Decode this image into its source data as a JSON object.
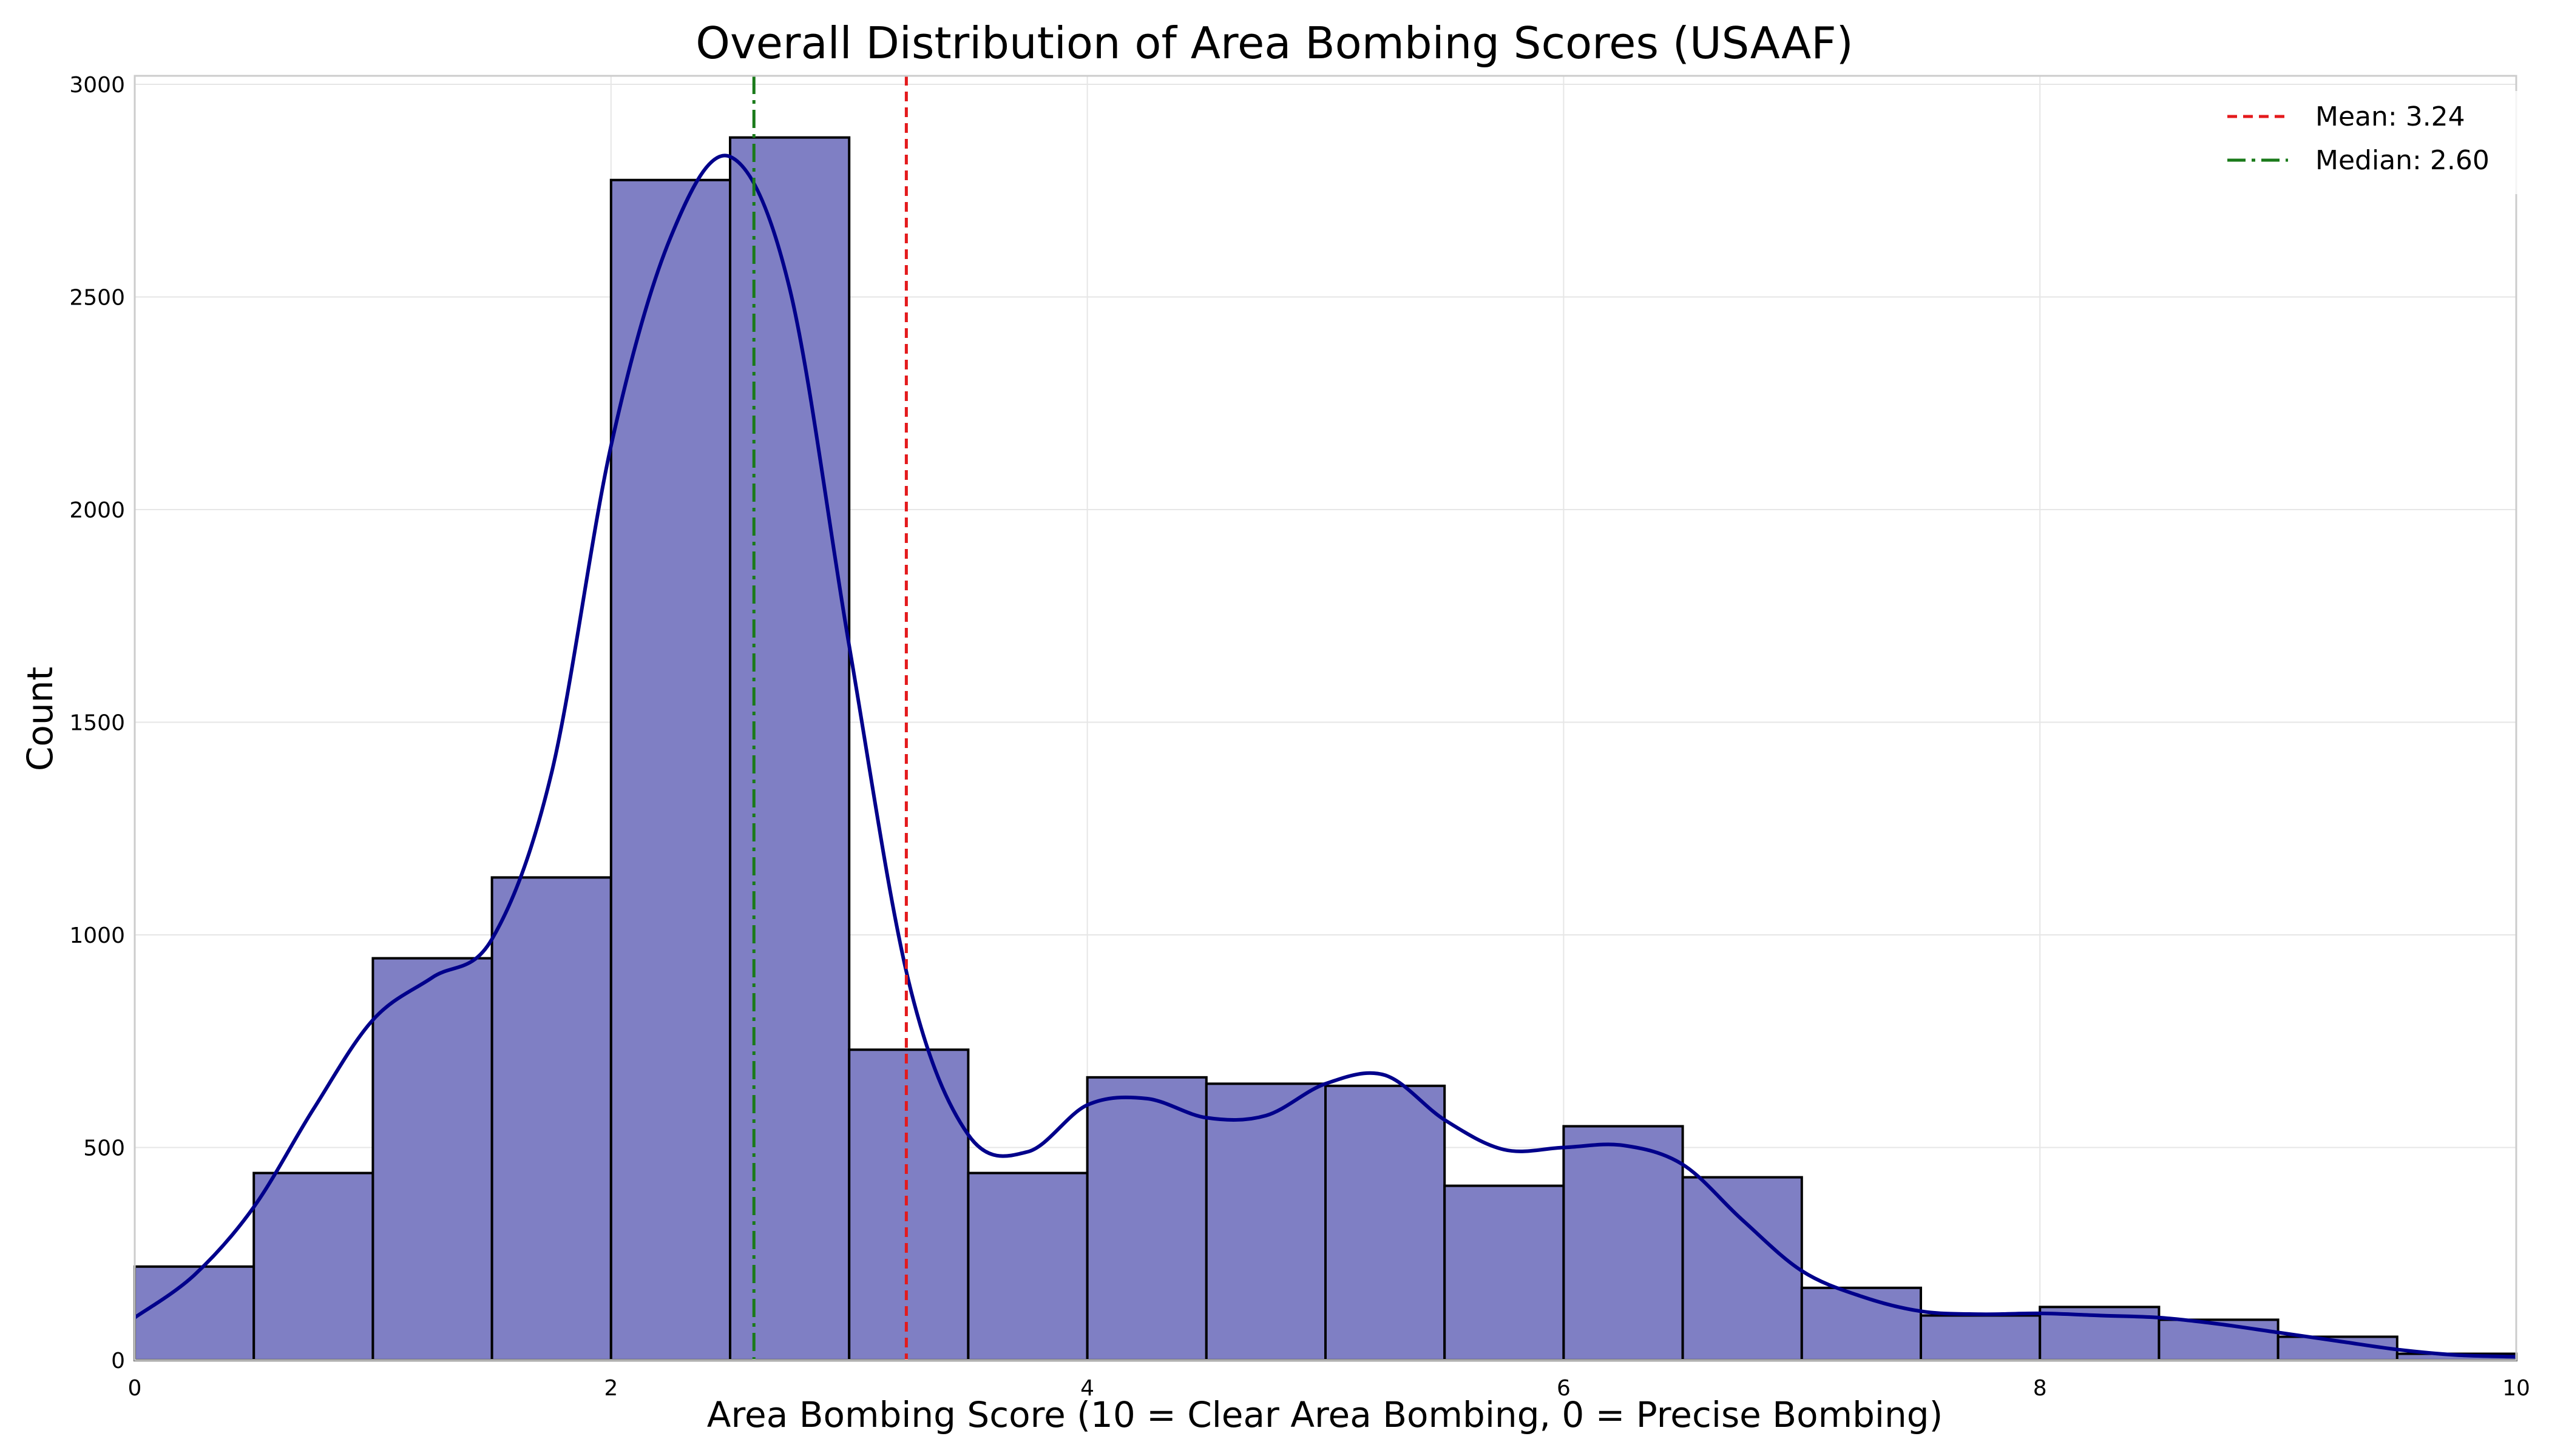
{
  "chart_data": {
    "type": "bar",
    "title": "Overall Distribution of Area Bombing Scores (USAAF)",
    "xlabel": "Area Bombing Score (10 = Clear Area Bombing, 0 = Precise Bombing)",
    "ylabel": "Count",
    "xlim": [
      0,
      10
    ],
    "ylim": [
      0,
      3020
    ],
    "xticks": [
      0,
      2,
      4,
      6,
      8,
      10
    ],
    "yticks": [
      0,
      500,
      1000,
      1500,
      2000,
      2500,
      3000
    ],
    "grid": true,
    "legend_position": "top-right",
    "bin_edges": [
      0,
      0.5,
      1,
      1.5,
      2,
      2.5,
      3,
      3.5,
      4,
      4.5,
      5,
      5.5,
      6,
      6.5,
      7,
      7.5,
      8,
      8.5,
      9,
      9.5,
      10
    ],
    "counts": [
      220,
      440,
      945,
      1135,
      2775,
      2875,
      730,
      440,
      665,
      650,
      645,
      410,
      550,
      430,
      170,
      105,
      125,
      95,
      55,
      15
    ],
    "kde": {
      "x": [
        0,
        0.25,
        0.5,
        0.75,
        1.0,
        1.25,
        1.5,
        1.75,
        2.0,
        2.25,
        2.5,
        2.75,
        3.0,
        3.25,
        3.5,
        3.75,
        4.0,
        4.25,
        4.5,
        4.75,
        5.0,
        5.25,
        5.5,
        5.75,
        6.0,
        6.25,
        6.5,
        6.75,
        7.0,
        7.25,
        7.5,
        7.75,
        8.0,
        8.25,
        8.5,
        8.75,
        9.0,
        9.25,
        9.5,
        9.75,
        10.0
      ],
      "y": [
        100,
        200,
        360,
        590,
        800,
        900,
        990,
        1380,
        2150,
        2640,
        2830,
        2520,
        1680,
        890,
        530,
        490,
        600,
        615,
        570,
        575,
        650,
        670,
        565,
        495,
        500,
        505,
        460,
        330,
        210,
        150,
        115,
        108,
        110,
        105,
        100,
        85,
        65,
        45,
        25,
        12,
        8
      ]
    },
    "bar_color": "#7f7fc4",
    "bar_edge_color": "#000000",
    "kde_color": "#00008b",
    "mean": {
      "label": "Mean: 3.24",
      "value": 3.24,
      "color": "#e41a1c",
      "style": "dashed"
    },
    "median": {
      "label": "Median: 2.60",
      "value": 2.6,
      "color": "#1a7a1a",
      "style": "dashdot"
    }
  }
}
